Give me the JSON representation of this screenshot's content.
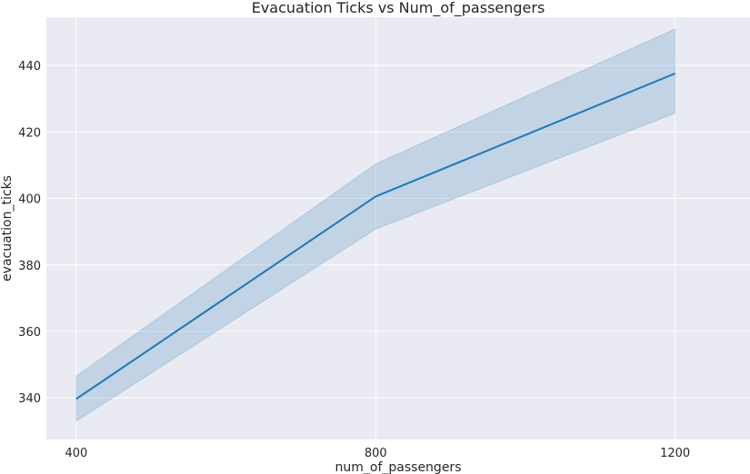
{
  "chart_data": {
    "type": "line",
    "title": "Evacuation Ticks vs Num_of_passengers",
    "xlabel": "num_of_passengers",
    "ylabel": "evacuation_ticks",
    "x": [
      400,
      800,
      1200
    ],
    "x_ticks": [
      400,
      800,
      1200
    ],
    "y_ticks": [
      340,
      360,
      380,
      400,
      420,
      440
    ],
    "xlim": [
      360,
      1300
    ],
    "ylim": [
      327.5,
      454.5
    ],
    "grid": true,
    "series": [
      {
        "values": [
          339.7,
          400.6,
          437.6
        ],
        "ci_lower": [
          333.0,
          390.8,
          425.6
        ],
        "ci_upper": [
          346.6,
          410.4,
          451.0
        ],
        "color": "#1f77b4",
        "band_color": "#1f77b4"
      }
    ],
    "background": "#eaeaf2",
    "grid_color": "#ffffff"
  }
}
